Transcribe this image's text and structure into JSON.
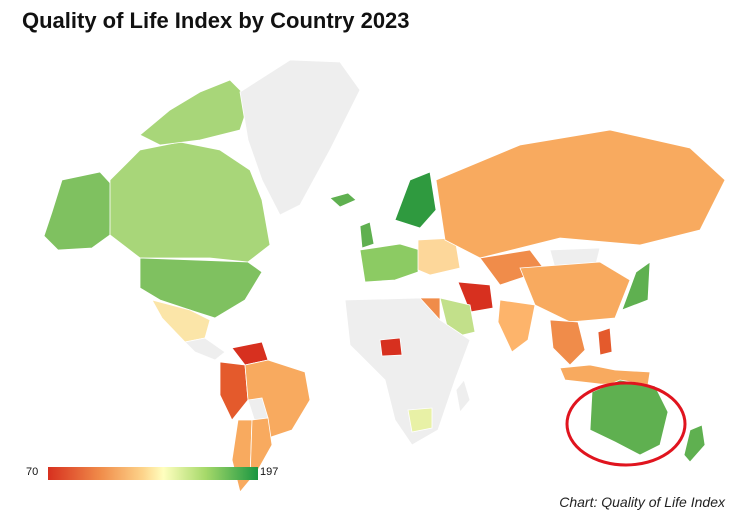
{
  "title": "Quality of Life Index by Country 2023",
  "legend": {
    "min": "70",
    "max": "197"
  },
  "credit": "Chart: Quality of Life Index",
  "colors": {
    "no_data": "#eeeeee",
    "low": "#d7301f",
    "mid_low": "#f08c4a",
    "mid": "#fdb46b",
    "mid_high": "#ffffbf",
    "high_light": "#a6d96a",
    "high": "#1a9641",
    "highlight_circle": "#e0141e"
  },
  "highlight": {
    "region": "Australia"
  }
}
